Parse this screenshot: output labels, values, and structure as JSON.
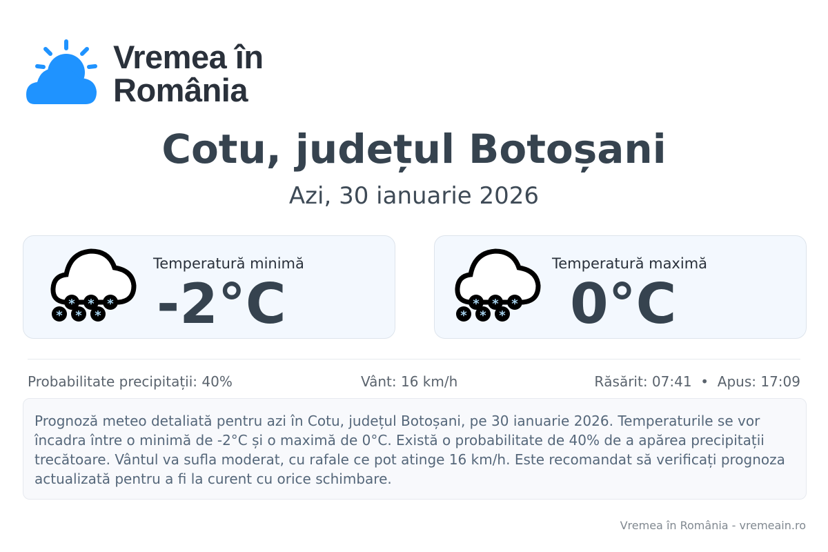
{
  "logo": {
    "line1": "Vremea în",
    "line2": "România",
    "color": "#1f93ff"
  },
  "title": "Cotu, județul Botoșani",
  "date": "Azi, 30 ianuarie 2026",
  "cards": [
    {
      "label": "Temperatură minimă",
      "value": "-2°C",
      "icon": "snow-cloud-icon"
    },
    {
      "label": "Temperatură maximă",
      "value": "0°C",
      "icon": "snow-cloud-icon"
    }
  ],
  "stats": {
    "precip": "Probabilitate precipitații: 40%",
    "wind": "Vânt: 16 km/h",
    "sun": "Răsărit: 07:41  •  Apus: 17:09"
  },
  "description": "Prognoză meteo detaliată pentru azi în Cotu, județul Botoșani, pe 30 ianuarie 2026. Temperaturile se vor încadra între o minimă de -2°C și o maximă de 0°C. Există o probabilitate de 40% de a apărea precipitații trecătoare. Vântul va sufla moderat, cu rafale ce pot atinge 16 km/h. Este recomandat să verificați prognoza actualizată pentru a fi la curent cu orice schimbare.",
  "footer": "Vremea în România - vremeain.ro"
}
